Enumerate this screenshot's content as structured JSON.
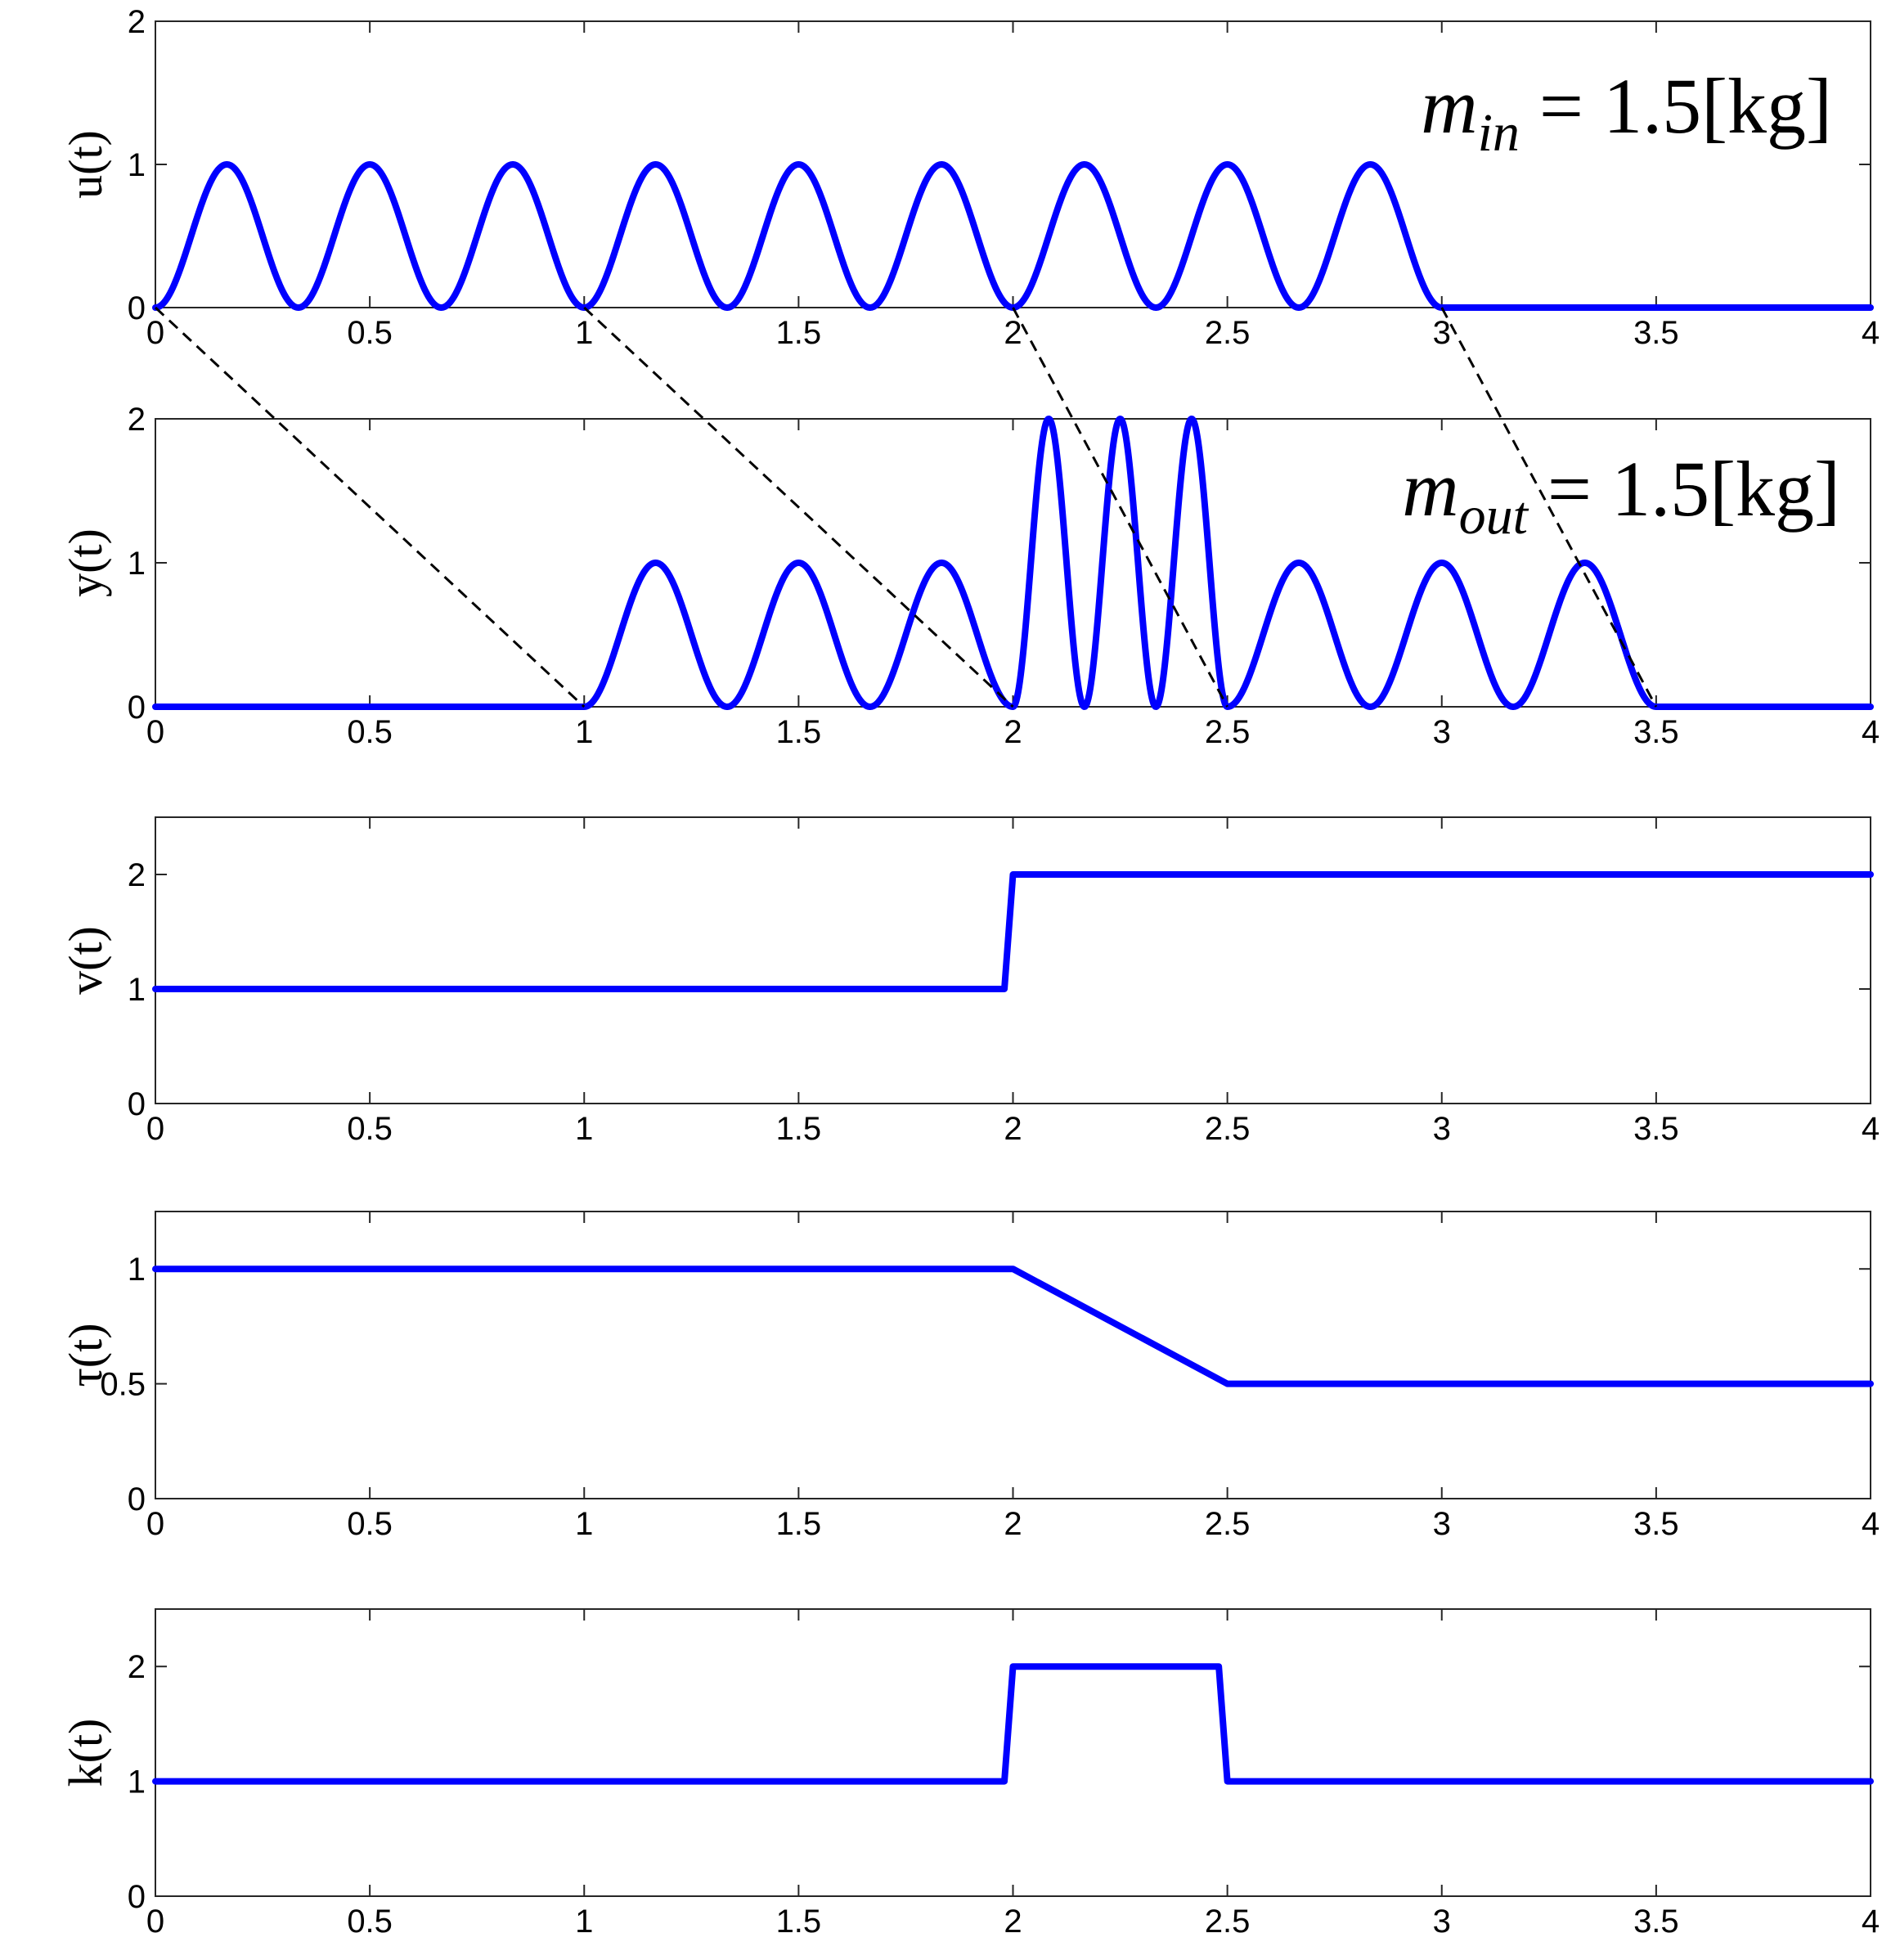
{
  "chart_data": [
    {
      "type": "line",
      "ylabel": "u(t)",
      "xlim": [
        0,
        4
      ],
      "ylim": [
        0,
        2
      ],
      "xticks": [
        0,
        0.5,
        1,
        1.5,
        2,
        2.5,
        3,
        3.5,
        4
      ],
      "xtick_labels": [
        "0",
        "0.5",
        "1",
        "1.5",
        "2",
        "2.5",
        "3",
        "3.5",
        "4"
      ],
      "yticks": [
        0,
        1,
        2
      ],
      "ytick_labels": [
        "0",
        "1",
        "2"
      ],
      "annotation": {
        "math": "m_in",
        "text": " = 1.5[kg]"
      },
      "series": [
        {
          "signal": "(1 - cos(6*pi*t)) / 2 for 0 <= t <= 3, 0 otherwise",
          "x": [
            0,
            0.1667,
            0.3333,
            0.5,
            0.6667,
            0.8333,
            1,
            1.1667,
            1.3333,
            1.5,
            1.6667,
            1.8333,
            2,
            2.1667,
            2.3333,
            2.5,
            2.6667,
            2.8333,
            3,
            4
          ],
          "y": [
            0,
            1,
            0,
            1,
            0,
            1,
            0,
            1,
            0,
            1,
            0,
            1,
            0,
            1,
            0,
            1,
            0,
            1,
            0,
            0
          ]
        }
      ]
    },
    {
      "type": "line",
      "ylabel": "y(t)",
      "xlim": [
        0,
        4
      ],
      "ylim": [
        0,
        2
      ],
      "xticks": [
        0,
        0.5,
        1,
        1.5,
        2,
        2.5,
        3,
        3.5,
        4
      ],
      "xtick_labels": [
        "0",
        "0.5",
        "1",
        "1.5",
        "2",
        "2.5",
        "3",
        "3.5",
        "4"
      ],
      "yticks": [
        0,
        1,
        2
      ],
      "ytick_labels": [
        "0",
        "1",
        "2"
      ],
      "annotation": {
        "math": "m_out",
        "text": " = 1.5[kg]"
      },
      "series": [
        {
          "signal": "0 for t < 1; (1-cos(6*pi*(t-1)))/2 for 1<=t<2; 1-cos(12*pi*(t-2)) for 2<=t<2.5; (1-cos(6*pi*(t-2.5)))/2 for 2.5<=t<=3.5; 0 after",
          "x": [
            0,
            1,
            1.1667,
            1.3333,
            1.5,
            1.6667,
            1.8333,
            2,
            2.0833,
            2.1667,
            2.25,
            2.3333,
            2.4167,
            2.5,
            2.6667,
            2.8333,
            3,
            3.1667,
            3.3333,
            3.5,
            4
          ],
          "y": [
            0,
            0,
            1,
            0,
            1,
            0,
            1,
            0,
            2,
            0,
            2,
            0,
            2,
            0,
            1,
            0,
            1,
            0,
            1,
            0,
            0
          ]
        }
      ]
    },
    {
      "type": "line",
      "ylabel": "v(t)",
      "xlim": [
        0,
        4
      ],
      "ylim": [
        0,
        2.5
      ],
      "xticks": [
        0,
        0.5,
        1,
        1.5,
        2,
        2.5,
        3,
        3.5,
        4
      ],
      "xtick_labels": [
        "0",
        "0.5",
        "1",
        "1.5",
        "2",
        "2.5",
        "3",
        "3.5",
        "4"
      ],
      "yticks": [
        0,
        1,
        2
      ],
      "ytick_labels": [
        "0",
        "1",
        "2"
      ],
      "series": [
        {
          "x": [
            0,
            1.98,
            2,
            4
          ],
          "y": [
            1,
            1,
            2,
            2
          ]
        }
      ]
    },
    {
      "type": "line",
      "ylabel": "τ(t)",
      "xlim": [
        0,
        4
      ],
      "ylim": [
        0,
        1.25
      ],
      "xticks": [
        0,
        0.5,
        1,
        1.5,
        2,
        2.5,
        3,
        3.5,
        4
      ],
      "xtick_labels": [
        "0",
        "0.5",
        "1",
        "1.5",
        "2",
        "2.5",
        "3",
        "3.5",
        "4"
      ],
      "yticks": [
        0,
        0.5,
        1
      ],
      "ytick_labels": [
        "0",
        "0.5",
        "1"
      ],
      "series": [
        {
          "x": [
            0,
            2,
            2.5,
            4
          ],
          "y": [
            1,
            1,
            0.5,
            0.5
          ]
        }
      ]
    },
    {
      "type": "line",
      "ylabel": "k(t)",
      "xlim": [
        0,
        4
      ],
      "ylim": [
        0,
        2.5
      ],
      "xticks": [
        0,
        0.5,
        1,
        1.5,
        2,
        2.5,
        3,
        3.5,
        4
      ],
      "xtick_labels": [
        "0",
        "0.5",
        "1",
        "1.5",
        "2",
        "2.5",
        "3",
        "3.5",
        "4"
      ],
      "yticks": [
        0,
        1,
        2
      ],
      "ytick_labels": [
        "0",
        "1",
        "2"
      ],
      "series": [
        {
          "x": [
            0,
            1.98,
            2,
            2.48,
            2.5,
            4
          ],
          "y": [
            1,
            1,
            2,
            2,
            1,
            1
          ]
        }
      ]
    }
  ],
  "delay_lines": [
    {
      "from": [
        0,
        0
      ],
      "to": [
        1,
        0
      ]
    },
    {
      "from": [
        1,
        0
      ],
      "to": [
        2,
        0
      ]
    },
    {
      "from": [
        2,
        0
      ],
      "to": [
        2.5,
        0
      ]
    },
    {
      "from": [
        3,
        0
      ],
      "to": [
        3.5,
        0
      ]
    }
  ],
  "colors": {
    "series": "#0000ff",
    "axes": "#262626",
    "delay": "#000000"
  }
}
